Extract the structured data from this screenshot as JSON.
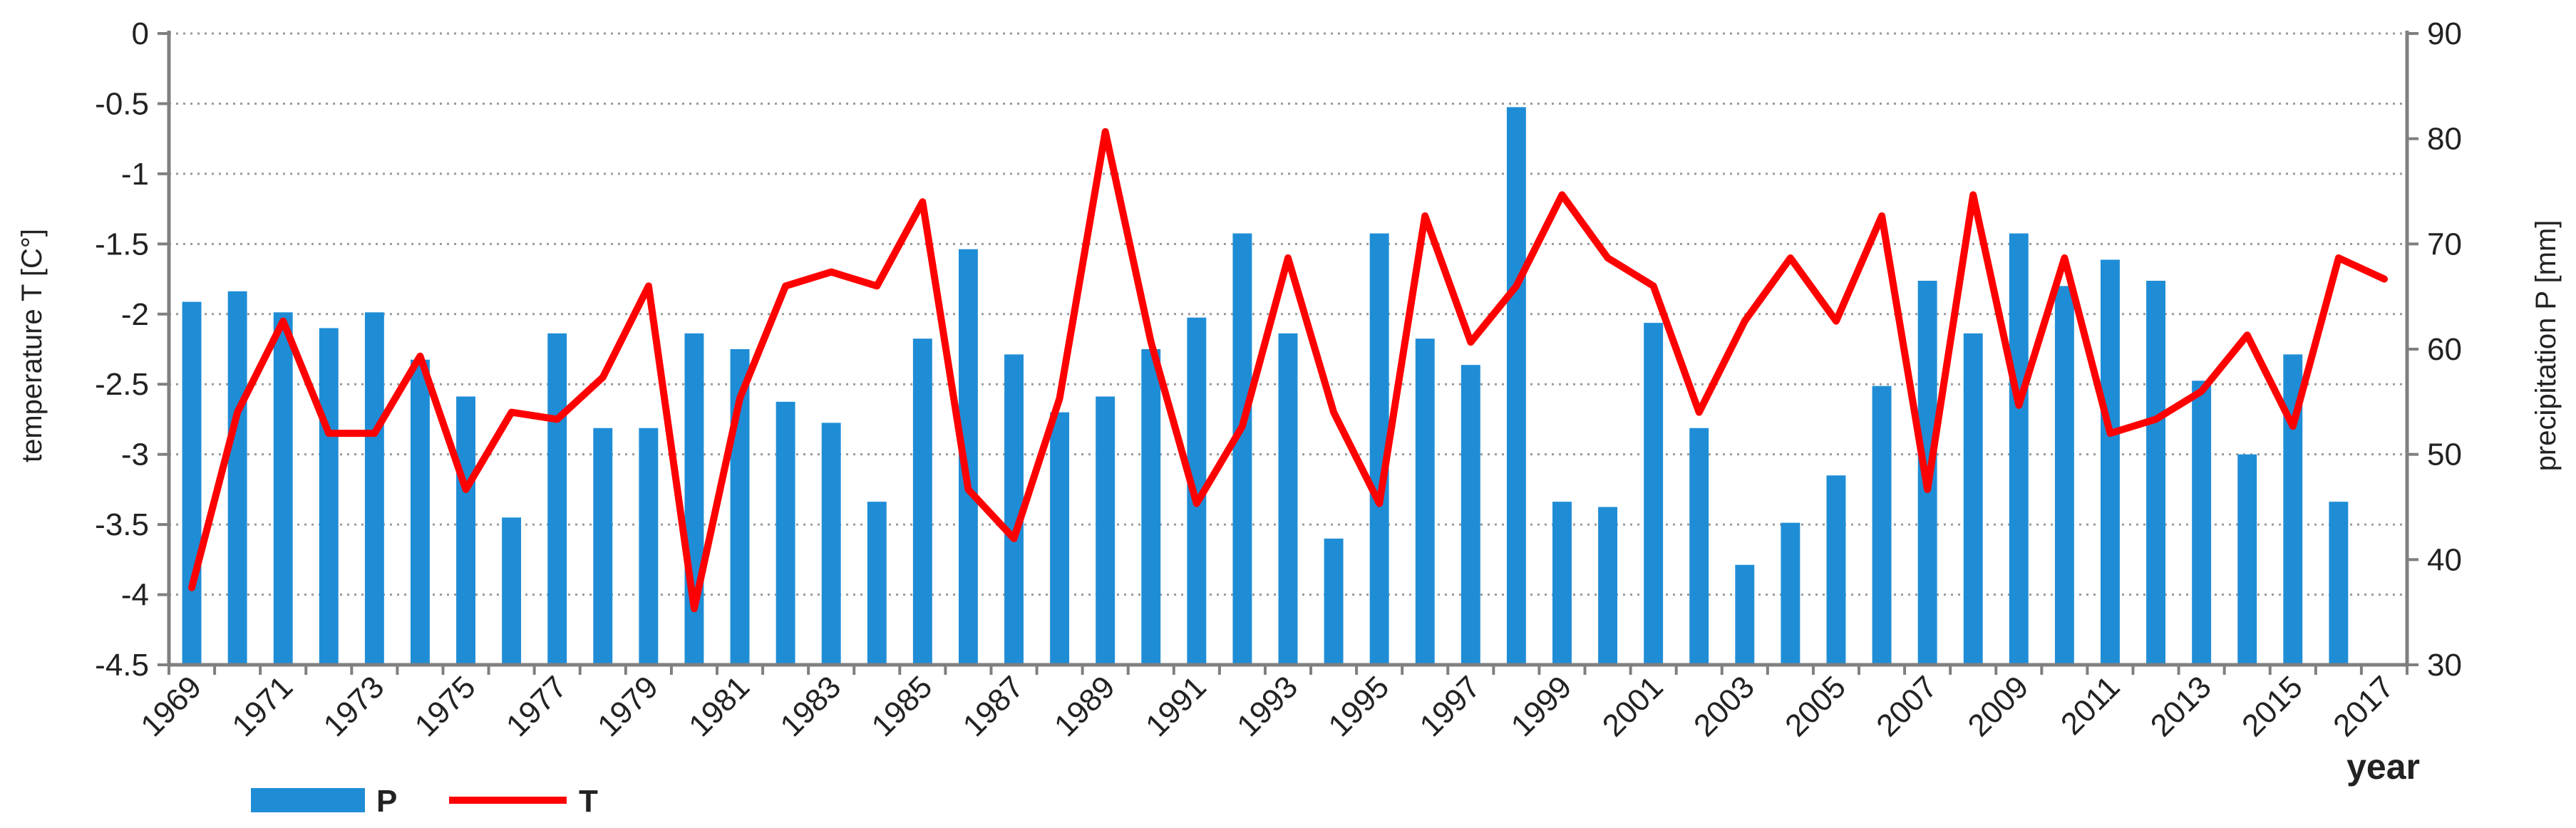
{
  "chart_data": {
    "type": "bar+line",
    "years": [
      1969,
      1970,
      1971,
      1972,
      1973,
      1974,
      1975,
      1976,
      1977,
      1978,
      1979,
      1980,
      1981,
      1982,
      1983,
      1984,
      1985,
      1986,
      1987,
      1988,
      1989,
      1990,
      1991,
      1992,
      1993,
      1994,
      1995,
      1996,
      1997,
      1998,
      1999,
      2000,
      2001,
      2002,
      2003,
      2004,
      2005,
      2006,
      2007,
      2008,
      2009,
      2010,
      2011,
      2012,
      2013,
      2014,
      2015,
      2016,
      2017
    ],
    "x_tick_labels": [
      "1969",
      "1971",
      "1973",
      "1975",
      "1977",
      "1979",
      "1981",
      "1983",
      "1985",
      "1987",
      "1989",
      "1991",
      "1993",
      "1995",
      "1997",
      "1999",
      "2001",
      "2003",
      "2005",
      "2007",
      "2009",
      "2011",
      "2013",
      "2015",
      "2017"
    ],
    "xlabel": "year",
    "y_left": {
      "label": "temperature T [C°]",
      "min": -4.5,
      "max": 0,
      "ticks": [
        0,
        -0.5,
        -1,
        -1.5,
        -2,
        -2.5,
        -3,
        -3.5,
        -4,
        -4.5
      ],
      "tick_labels": [
        "0",
        "-0.5",
        "-1",
        "-1.5",
        "-2",
        "-2.5",
        "-3",
        "-3.5",
        "-4",
        "-4.5"
      ]
    },
    "y_right": {
      "label": "precipitation P [mm]",
      "min": 30,
      "max": 90,
      "ticks": [
        90,
        80,
        70,
        60,
        50,
        40,
        30
      ],
      "tick_labels": [
        "90",
        "80",
        "70",
        "60",
        "50",
        "40",
        "30"
      ]
    },
    "grid": "horizontal dotted",
    "legend_position": "bottom-left",
    "series": [
      {
        "name": "P",
        "kind": "bar",
        "axis": "right",
        "color": "#1f8dd6",
        "values": [
          64.5,
          65.5,
          63.5,
          62,
          63.5,
          59,
          55.5,
          44,
          61.5,
          52.5,
          52.5,
          61.5,
          60,
          55,
          53,
          45.5,
          61,
          69.5,
          59.5,
          54,
          55.5,
          60,
          63,
          71,
          61.5,
          42,
          71,
          61,
          58.5,
          83,
          45.5,
          45,
          62.5,
          52.5,
          39.5,
          43.5,
          48,
          56.5,
          66.5,
          61.5,
          71,
          66,
          68.5,
          66.5,
          57,
          50,
          59.5,
          45.5,
          null
        ]
      },
      {
        "name": "T",
        "kind": "line",
        "axis": "left",
        "color": "#ff0000",
        "values": [
          -3.95,
          -2.7,
          -2.05,
          -2.85,
          -2.85,
          -2.3,
          -3.25,
          -2.7,
          -2.75,
          -2.45,
          -1.8,
          -4.1,
          -2.6,
          -1.8,
          -1.7,
          -1.8,
          -1.2,
          -3.25,
          -3.6,
          -2.6,
          -0.7,
          -2.2,
          -3.35,
          -2.8,
          -1.6,
          -2.7,
          -3.35,
          -1.3,
          -2.2,
          -1.8,
          -1.15,
          -1.6,
          -1.8,
          -2.7,
          -2.05,
          -1.6,
          -2.05,
          -1.3,
          -3.25,
          -1.15,
          -2.65,
          -1.6,
          -2.85,
          -2.75,
          -2.55,
          -2.15,
          -2.8,
          -1.6,
          -1.75
        ]
      }
    ]
  }
}
